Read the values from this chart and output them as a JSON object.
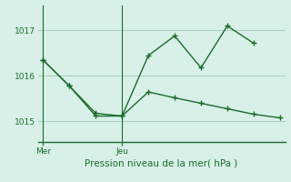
{
  "background_color": "#cce8d8",
  "plot_bg_color": "#d8f0e8",
  "grid_color": "#aaccbb",
  "line_color": "#1a6b2a",
  "title": "Pression niveau de la mer( hPa )",
  "xtick_labels": [
    "Mer",
    "Jeu"
  ],
  "xtick_positions": [
    0,
    3
  ],
  "ytick_labels": [
    "1015",
    "1016",
    "1017"
  ],
  "ytick_positions": [
    1015,
    1016,
    1017
  ],
  "ylim": [
    1014.55,
    1017.55
  ],
  "xlim": [
    -0.2,
    9.2
  ],
  "line1_x": [
    0,
    1,
    2,
    3,
    4,
    5,
    6,
    7,
    8
  ],
  "line1_y": [
    1016.35,
    1015.78,
    1015.12,
    1015.12,
    1016.45,
    1016.88,
    1016.18,
    1017.1,
    1016.72
  ],
  "line2_x": [
    0,
    1,
    2,
    3,
    4,
    5,
    6,
    7,
    8,
    9
  ],
  "line2_y": [
    1016.35,
    1015.78,
    1015.18,
    1015.12,
    1015.65,
    1015.52,
    1015.4,
    1015.28,
    1015.16,
    1015.08
  ],
  "figsize": [
    3.2,
    2.0
  ],
  "dpi": 100
}
